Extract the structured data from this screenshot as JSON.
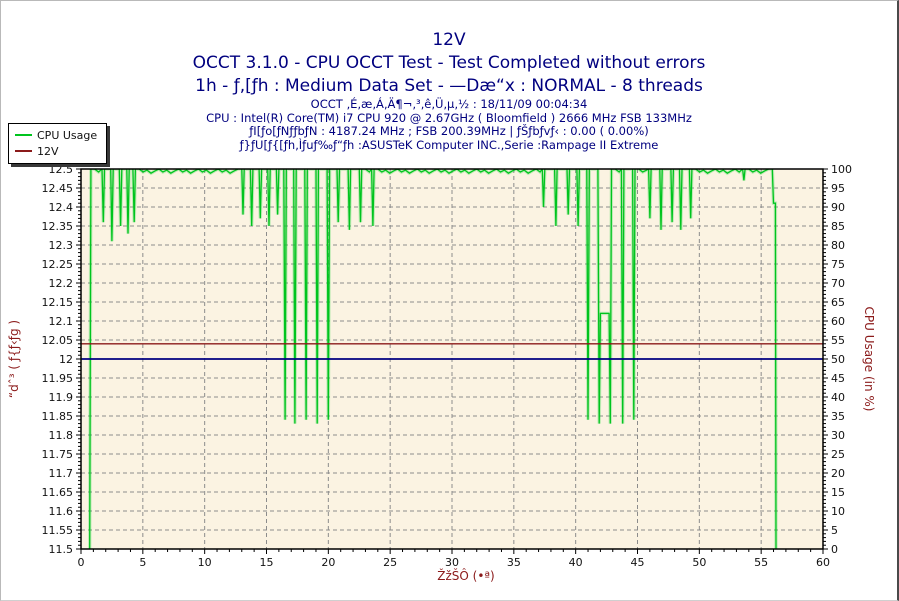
{
  "header": {
    "title": "12V",
    "subtitle1": "OCCT 3.1.0 - CPU OCCT Test - Test Completed without errors",
    "subtitle2": "1h - ƒ‚[ƒh : Medium Data Set - —Dæ“x : NORMAL - 8 threads",
    "info_lines": [
      "OCCT ‚É‚æ‚Á‚Ä¶¬‚³‚ê‚Ü‚µ‚½ : 18/11/09 00:04:34",
      "CPU : Intel(R) Core(TM) i7 CPU 920 @ 2.67GHz ( Bloomfield ) 2666 MHz FSB 133MHz",
      "ƒI[ƒo[ƒNƒƒbƒN : 4187.24 MHz ; FSB 200.39MHz | ƒŠƒbƒvƒ‹ : 0.00 ( 0.00%)",
      "ƒ}ƒU[ƒ{[ƒh‚Ìƒuƒ‰ƒ“ƒh :ASUSTeK Computer INC.,Serie :Rampage II Extreme"
    ],
    "text_color": "#00007f"
  },
  "legend": {
    "items": [
      {
        "label": "CPU Usage",
        "color": "#00c41e"
      },
      {
        "label": "12V",
        "color": "#8b1a1a"
      }
    ]
  },
  "chart_data": {
    "type": "line",
    "title": "12V",
    "xlabel": "ŽžŠÔ (•ª)",
    "ylabel_left": "“dˆ³ ( ƒ{ƒ‹ƒg )",
    "ylabel_right": "CPU Usage (in %)",
    "x_range": [
      0,
      60
    ],
    "x_major_step": 5,
    "x_minor_step": 1,
    "left_axis_range": [
      11.5,
      12.5
    ],
    "left_major_step": 0.05,
    "left_minor_step": 0.01,
    "right_axis_range": [
      0,
      100
    ],
    "right_major_step": 5,
    "right_minor_step": 1,
    "grid": {
      "on": true,
      "color": "#8c8c8c",
      "dash": "4 3"
    },
    "plot_bg": "#fbf3e2",
    "border_color": "#000000",
    "legend_position": "top-left",
    "series": [
      {
        "name": "CPU Usage",
        "axis": "right",
        "color": "#00c41e",
        "halo_color": "rgba(60,220,80,0.30)",
        "points": [
          [
            0.7,
            0
          ],
          [
            0.8,
            100
          ],
          [
            1.7,
            100
          ],
          [
            1.8,
            86
          ],
          [
            1.9,
            100
          ],
          [
            2.4,
            100
          ],
          [
            2.5,
            81
          ],
          [
            2.6,
            100
          ],
          [
            3.1,
            100
          ],
          [
            3.2,
            85
          ],
          [
            3.3,
            100
          ],
          [
            3.7,
            100
          ],
          [
            3.8,
            83
          ],
          [
            3.9,
            100
          ],
          [
            4.2,
            100
          ],
          [
            4.3,
            86
          ],
          [
            4.4,
            100
          ],
          [
            13.0,
            100
          ],
          [
            13.1,
            88
          ],
          [
            13.2,
            100
          ],
          [
            13.7,
            100
          ],
          [
            13.8,
            85
          ],
          [
            13.9,
            100
          ],
          [
            14.4,
            100
          ],
          [
            14.5,
            87
          ],
          [
            14.6,
            100
          ],
          [
            15.1,
            100
          ],
          [
            15.2,
            85
          ],
          [
            15.3,
            100
          ],
          [
            15.8,
            100
          ],
          [
            15.9,
            88
          ],
          [
            16.0,
            100
          ],
          [
            16.4,
            100
          ],
          [
            16.5,
            34
          ],
          [
            16.6,
            100
          ],
          [
            17.2,
            100
          ],
          [
            17.3,
            33
          ],
          [
            17.4,
            100
          ],
          [
            18.1,
            100
          ],
          [
            18.2,
            34
          ],
          [
            18.3,
            100
          ],
          [
            19.0,
            100
          ],
          [
            19.1,
            33
          ],
          [
            19.2,
            100
          ],
          [
            19.9,
            100
          ],
          [
            20.0,
            34
          ],
          [
            20.1,
            100
          ],
          [
            20.7,
            100
          ],
          [
            20.8,
            86
          ],
          [
            20.9,
            100
          ],
          [
            21.6,
            100
          ],
          [
            21.7,
            84
          ],
          [
            21.8,
            100
          ],
          [
            22.5,
            100
          ],
          [
            22.6,
            86
          ],
          [
            22.7,
            100
          ],
          [
            23.5,
            100
          ],
          [
            23.6,
            85
          ],
          [
            23.7,
            100
          ],
          [
            37.3,
            100
          ],
          [
            37.4,
            90
          ],
          [
            37.5,
            100
          ],
          [
            38.3,
            100
          ],
          [
            38.4,
            85
          ],
          [
            38.5,
            100
          ],
          [
            39.3,
            100
          ],
          [
            39.4,
            88
          ],
          [
            39.5,
            100
          ],
          [
            40.1,
            100
          ],
          [
            40.2,
            85
          ],
          [
            40.3,
            100
          ],
          [
            40.9,
            100
          ],
          [
            41.0,
            34
          ],
          [
            41.1,
            100
          ],
          [
            41.8,
            100
          ],
          [
            41.9,
            33
          ],
          [
            42.0,
            62
          ],
          [
            42.7,
            62
          ],
          [
            42.8,
            33
          ],
          [
            42.9,
            100
          ],
          [
            43.7,
            100
          ],
          [
            43.8,
            33
          ],
          [
            43.9,
            100
          ],
          [
            44.6,
            100
          ],
          [
            44.7,
            34
          ],
          [
            44.8,
            100
          ],
          [
            45.9,
            100
          ],
          [
            46.0,
            87
          ],
          [
            46.1,
            100
          ],
          [
            46.8,
            100
          ],
          [
            46.9,
            84
          ],
          [
            47.0,
            100
          ],
          [
            47.7,
            100
          ],
          [
            47.8,
            86
          ],
          [
            47.9,
            100
          ],
          [
            48.4,
            100
          ],
          [
            48.5,
            84
          ],
          [
            48.6,
            100
          ],
          [
            49.2,
            100
          ],
          [
            49.3,
            87
          ],
          [
            49.4,
            100
          ],
          [
            53.5,
            100
          ],
          [
            53.6,
            97
          ],
          [
            53.7,
            100
          ],
          [
            55.9,
            100
          ],
          [
            56.0,
            91
          ],
          [
            56.15,
            91
          ],
          [
            56.2,
            0
          ]
        ]
      },
      {
        "name": "12V",
        "axis": "left",
        "color": "#8b1a1a",
        "points": [
          [
            0,
            12.04
          ],
          [
            60,
            12.04
          ]
        ]
      }
    ],
    "reference_line": {
      "axis": "left",
      "value": 12.0,
      "color": "#000080"
    }
  }
}
